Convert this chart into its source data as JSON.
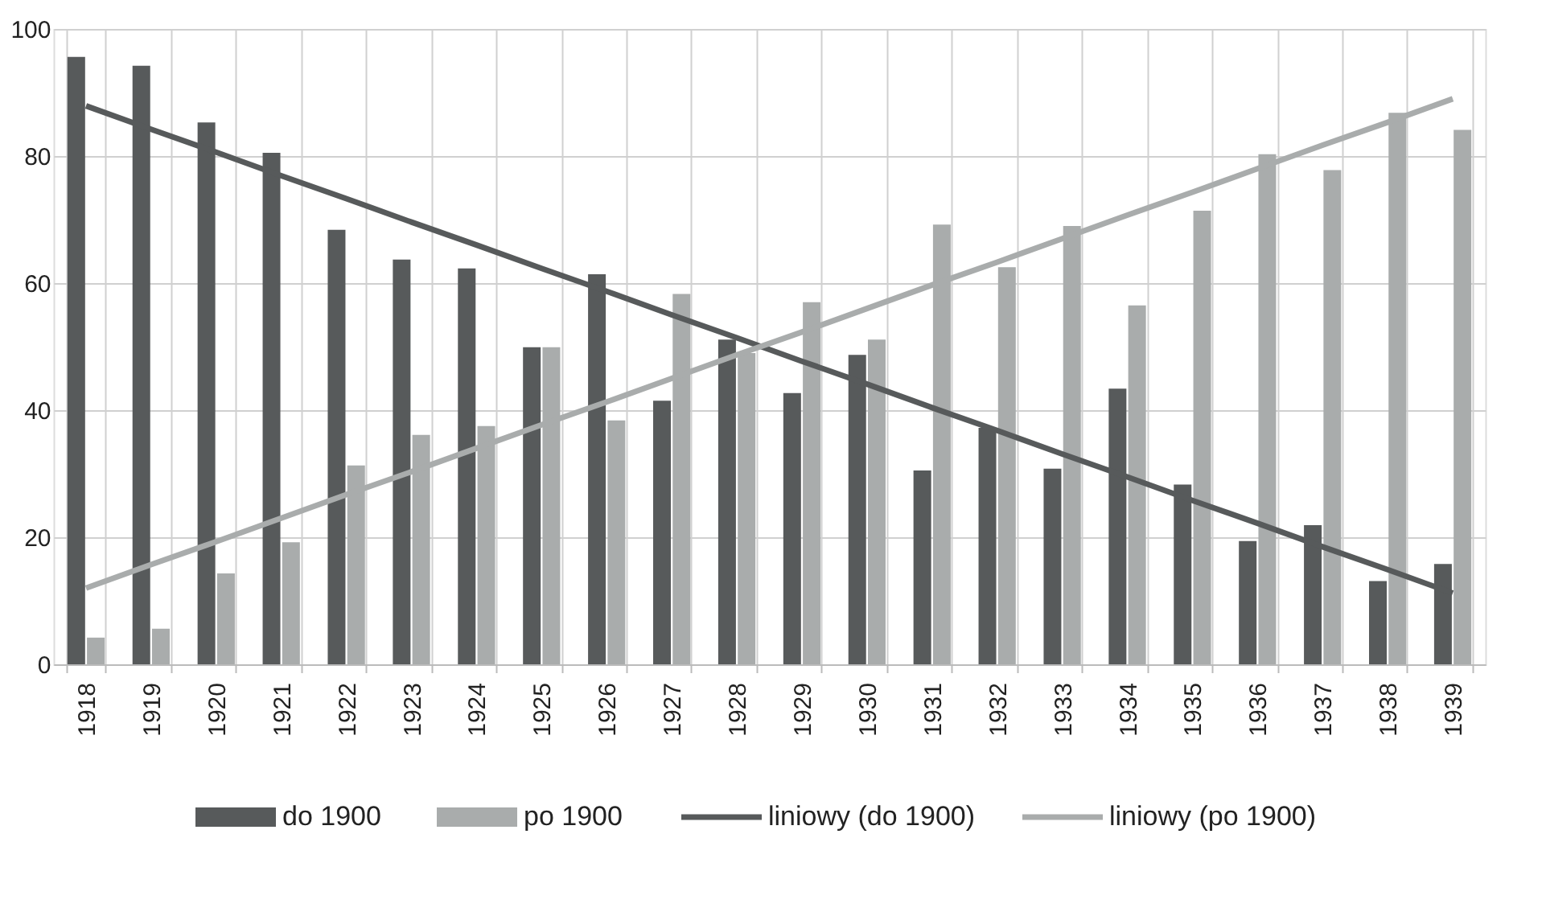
{
  "chart_data": {
    "type": "bar",
    "categories": [
      "1918",
      "1919",
      "1920",
      "1921",
      "1922",
      "1923",
      "1924",
      "1925",
      "1926",
      "1927",
      "1928",
      "1929",
      "1930",
      "1931",
      "1932",
      "1933",
      "1934",
      "1935",
      "1936",
      "1937",
      "1938",
      "1939"
    ],
    "series": [
      {
        "name": "do 1900",
        "color": "#575a5b",
        "values": [
          95.6,
          94.2,
          85.3,
          80.5,
          68.4,
          63.7,
          62.3,
          49.9,
          61.4,
          41.5,
          51.1,
          42.7,
          48.7,
          30.5,
          37.2,
          30.8,
          43.4,
          28.3,
          19.4,
          21.9,
          13.1,
          15.8
        ]
      },
      {
        "name": "po 1900",
        "color": "#a9acac",
        "values": [
          4.2,
          5.6,
          14.3,
          19.2,
          31.3,
          36.1,
          37.5,
          49.9,
          38.4,
          58.3,
          49.0,
          57.0,
          51.1,
          69.2,
          62.5,
          69.0,
          56.5,
          71.4,
          80.3,
          77.8,
          86.8,
          84.1
        ]
      },
      {
        "name": "liniowy (do 1900)",
        "type": "line",
        "color": "#575a5b",
        "values": [
          87.9,
          84.2,
          80.6,
          76.9,
          73.3,
          69.6,
          66.0,
          62.3,
          58.7,
          55.0,
          51.4,
          47.7,
          44.1,
          40.4,
          36.8,
          33.1,
          29.5,
          25.8,
          22.2,
          18.5,
          14.9,
          11.2
        ]
      },
      {
        "name": "liniowy (po 1900)",
        "type": "line",
        "color": "#a9acac",
        "values": [
          12.0,
          15.7,
          19.3,
          23.0,
          26.7,
          30.3,
          34.0,
          37.7,
          41.3,
          45.0,
          48.7,
          52.3,
          56.0,
          59.7,
          63.3,
          67.0,
          70.7,
          74.3,
          78.0,
          81.7,
          85.3,
          89.0
        ]
      }
    ],
    "ylim": [
      0,
      100
    ],
    "yticks": [
      0,
      20,
      40,
      60,
      80,
      100
    ],
    "grid": true,
    "legend": "bottom"
  }
}
